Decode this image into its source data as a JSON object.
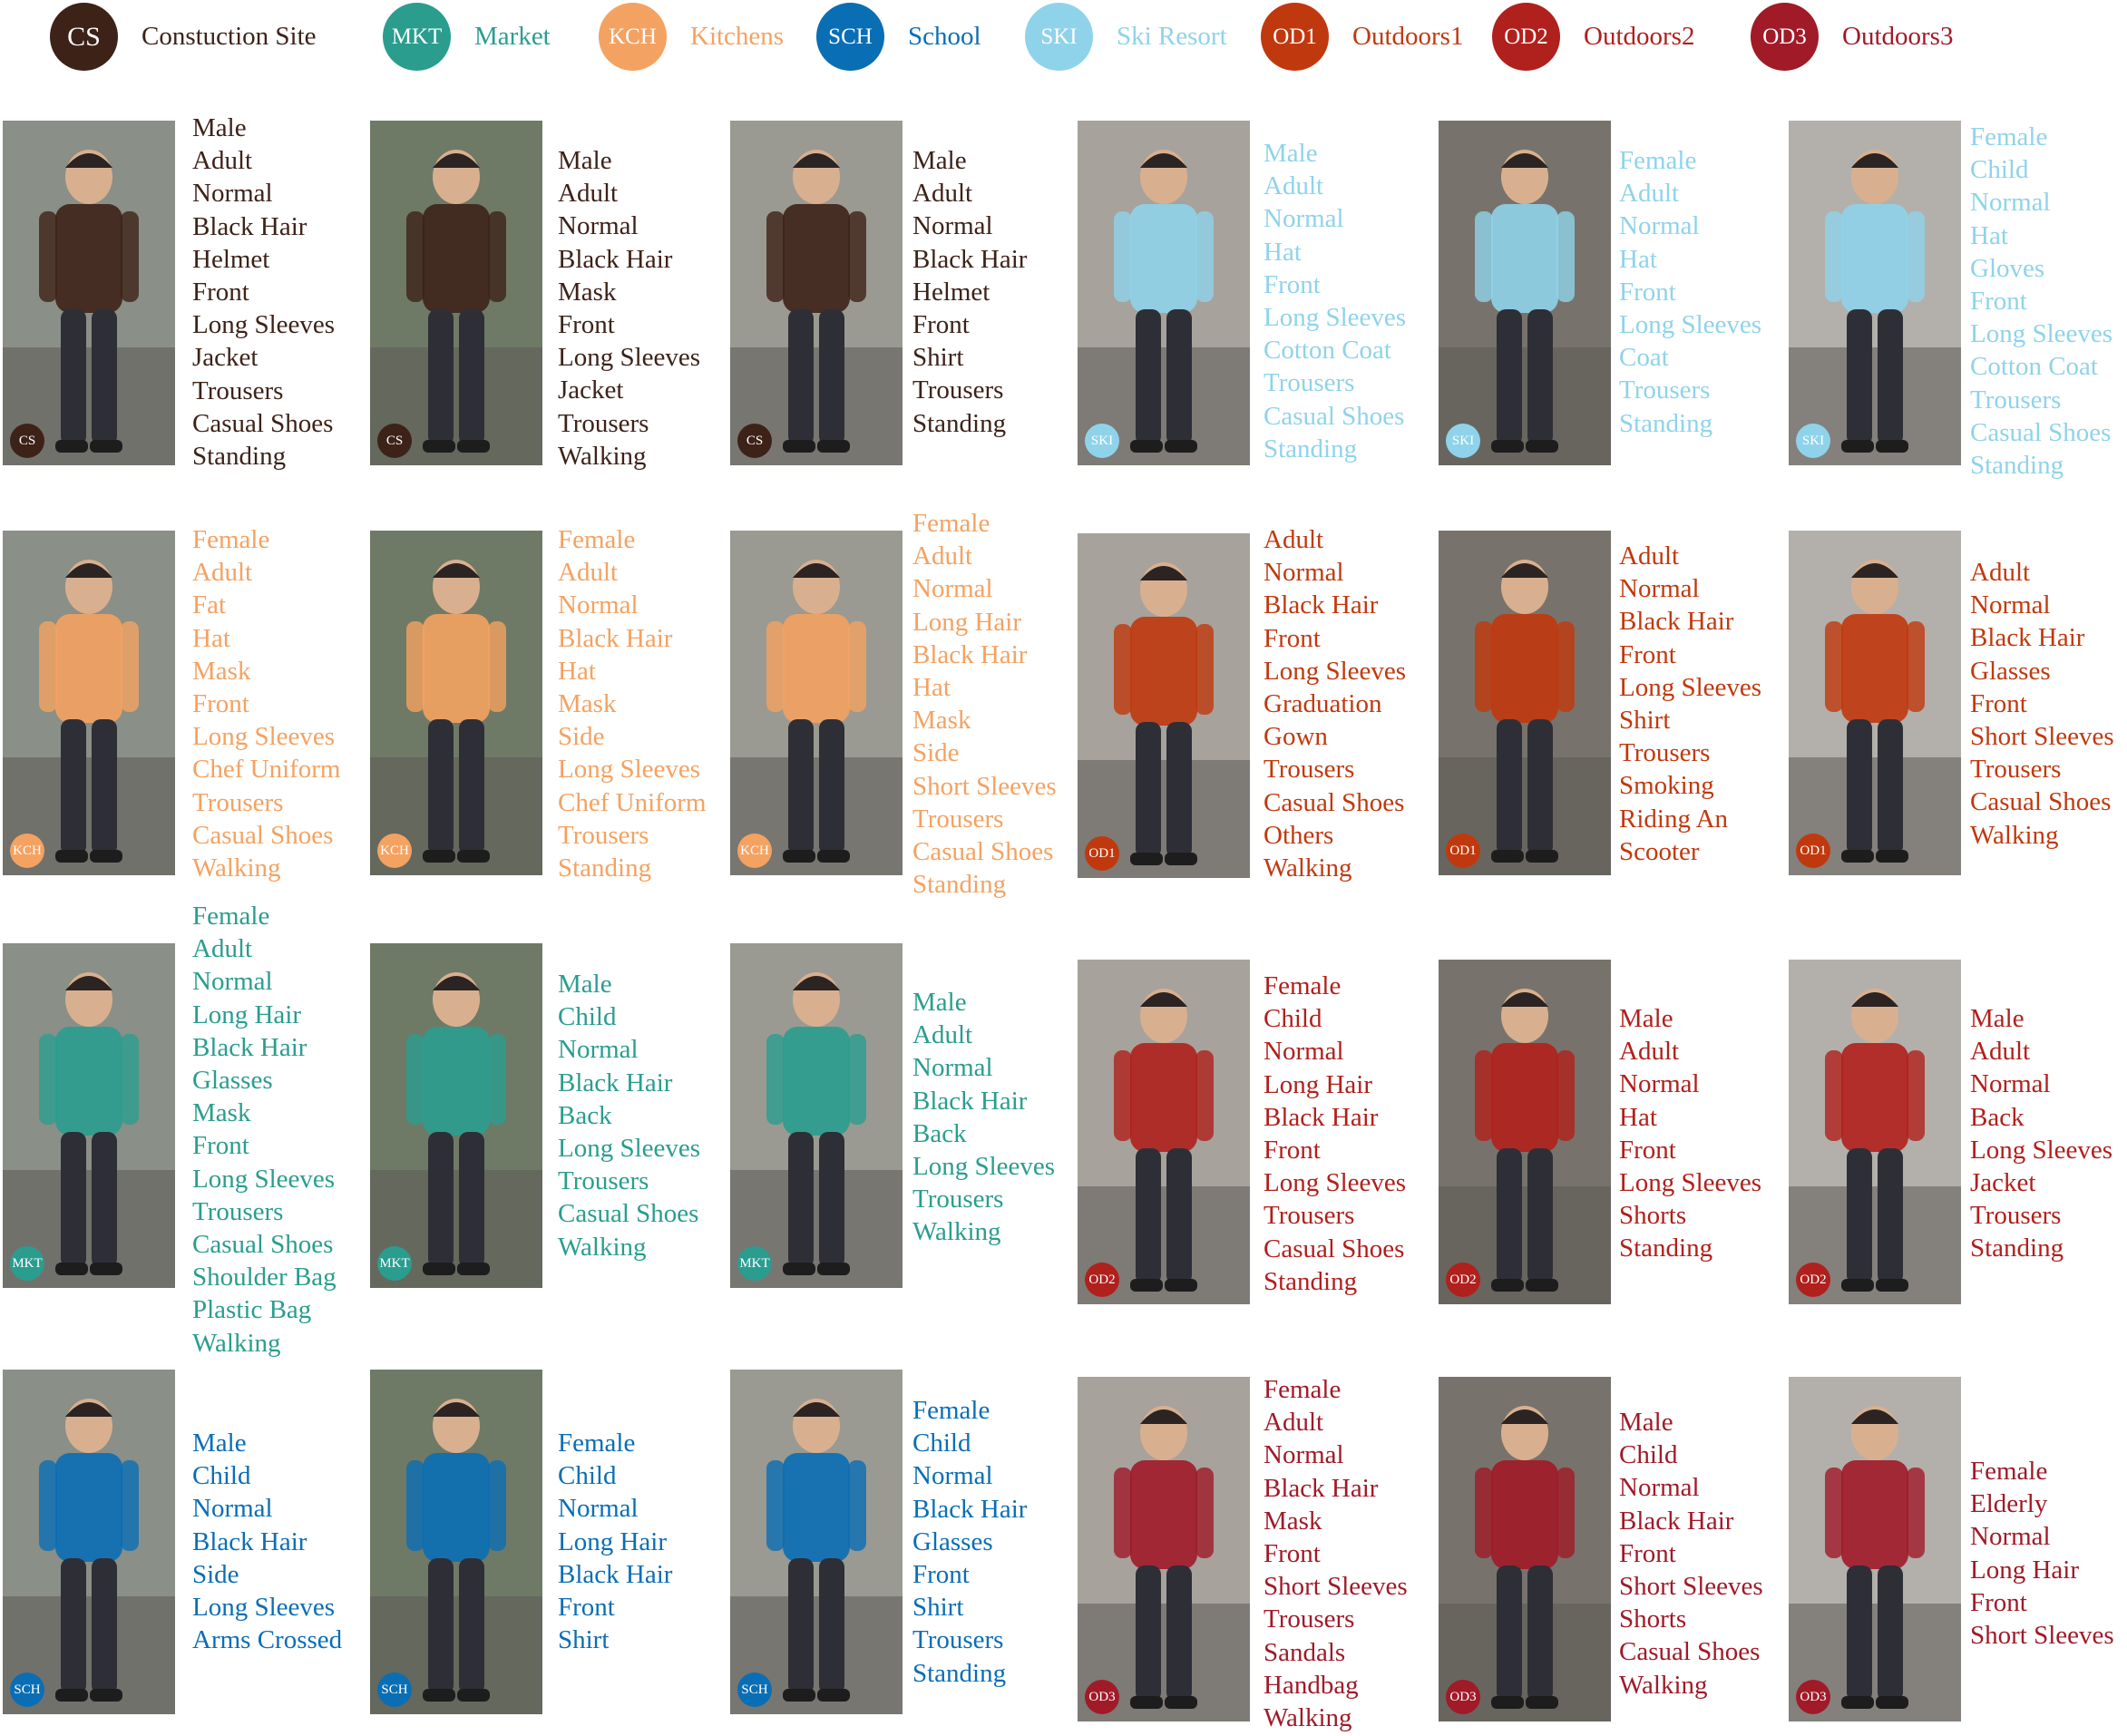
{
  "scenes": {
    "CS": {
      "code": "CS",
      "label": "Constuction Site",
      "circle": "#3d2218",
      "text": "#3d2218"
    },
    "MKT": {
      "code": "MKT",
      "label": "Market",
      "circle": "#2a9d8f",
      "text": "#2a9d8f"
    },
    "KCH": {
      "code": "KCH",
      "label": "Kitchens",
      "circle": "#f4a261",
      "text": "#f4a261"
    },
    "SCH": {
      "code": "SCH",
      "label": "School",
      "circle": "#0a6eb5",
      "text": "#0a6eb5"
    },
    "SKI": {
      "code": "SKI",
      "label": "Ski Resort",
      "circle": "#8fd3ea",
      "text": "#8fd3ea"
    },
    "OD1": {
      "code": "OD1",
      "label": "Outdoors1",
      "circle": "#c0390e",
      "text": "#c0390e"
    },
    "OD2": {
      "code": "OD2",
      "label": "Outdoors2",
      "circle": "#b0201c",
      "text": "#b0201c"
    },
    "OD3": {
      "code": "OD3",
      "label": "Outdoors3",
      "circle": "#a01a28",
      "text": "#a01a28"
    }
  },
  "legend_order": [
    "CS",
    "MKT",
    "KCH",
    "SCH",
    "SKI",
    "OD1",
    "OD2",
    "OD3"
  ],
  "samples": [
    {
      "scene": "CS",
      "attributes": [
        "Male",
        "Adult",
        "Normal",
        "Black Hair",
        "Helmet",
        "Front",
        "Long Sleeves",
        "Jacket",
        "Trousers",
        "Casual Shoes",
        "Standing"
      ]
    },
    {
      "scene": "CS",
      "attributes": [
        "Male",
        "Adult",
        "Normal",
        "Black Hair",
        "Mask",
        "Front",
        "Long Sleeves",
        "Jacket",
        "Trousers",
        "Walking"
      ]
    },
    {
      "scene": "CS",
      "attributes": [
        "Male",
        "Adult",
        "Normal",
        "Black Hair",
        "Helmet",
        "Front",
        "Shirt",
        "Trousers",
        "Standing"
      ]
    },
    {
      "scene": "SKI",
      "attributes": [
        "Male",
        "Adult",
        "Normal",
        "Hat",
        "Front",
        "Long Sleeves",
        "Cotton  Coat",
        "Trousers",
        "Casual Shoes",
        "Standing"
      ]
    },
    {
      "scene": "SKI",
      "attributes": [
        "Female",
        "Adult",
        "Normal",
        "Hat",
        "Front",
        "Long Sleeves",
        "Coat",
        "Trousers",
        "Standing"
      ]
    },
    {
      "scene": "SKI",
      "attributes": [
        "Female",
        "Child",
        "Normal",
        "Hat",
        "Gloves",
        "Front",
        "Long Sleeves",
        "Cotton Coat",
        "Trousers",
        "Casual Shoes",
        "Standing"
      ]
    },
    {
      "scene": "KCH",
      "attributes": [
        "Female",
        "Adult",
        "Fat",
        "Hat",
        "Mask",
        "Front",
        "Long Sleeves",
        "Chef Uniform",
        "Trousers",
        "Casual Shoes",
        "Walking"
      ]
    },
    {
      "scene": "KCH",
      "attributes": [
        "Female",
        "Adult",
        "Normal",
        "Black Hair",
        "Hat",
        "Mask",
        "Side",
        "Long Sleeves",
        "Chef Uniform",
        "Trousers",
        "Standing"
      ]
    },
    {
      "scene": "KCH",
      "attributes": [
        "Female",
        "Adult",
        "Normal",
        "Long Hair",
        "Black Hair",
        "Hat",
        "Mask",
        "Side",
        "Short Sleeves",
        "Trousers",
        "Casual Shoes",
        "Standing"
      ]
    },
    {
      "scene": "OD1",
      "attributes": [
        "Adult",
        "Normal",
        "Black Hair",
        "Front",
        "Long Sleeves",
        "Graduation",
        "Gown",
        "Trousers",
        "Casual Shoes",
        "Others",
        "Walking"
      ]
    },
    {
      "scene": "OD1",
      "attributes": [
        "Adult",
        "Normal",
        "Black Hair",
        "Front",
        "Long Sleeves",
        "Shirt",
        "Trousers",
        "Smoking",
        "Riding An",
        "Scooter"
      ]
    },
    {
      "scene": "OD1",
      "attributes": [
        "Adult",
        "Normal",
        "Black Hair",
        "Glasses",
        "Front",
        "Short Sleeves",
        "Trousers",
        "Casual Shoes",
        "Walking"
      ]
    },
    {
      "scene": "MKT",
      "attributes": [
        "Female",
        "Adult",
        "Normal",
        "Long Hair",
        "Black Hair",
        "Glasses",
        "Mask",
        "Front",
        "Long Sleeves",
        "Trousers",
        "Casual Shoes",
        "Shoulder Bag",
        "Plastic Bag",
        "Walking"
      ]
    },
    {
      "scene": "MKT",
      "attributes": [
        "Male",
        "Child",
        "Normal",
        "Black Hair",
        "Back",
        "Long Sleeves",
        "Trousers",
        "Casual Shoes",
        "Walking"
      ]
    },
    {
      "scene": "MKT",
      "attributes": [
        "Male",
        "Adult",
        "Normal",
        "Black Hair",
        "Back",
        "Long Sleeves",
        "Trousers",
        "Walking"
      ]
    },
    {
      "scene": "OD2",
      "attributes": [
        "Female",
        "Child",
        "Normal",
        "Long Hair",
        "Black Hair",
        "Front",
        "Long Sleeves",
        "Trousers",
        "Casual Shoes",
        "Standing"
      ]
    },
    {
      "scene": "OD2",
      "attributes": [
        "Male",
        "Adult",
        "Normal",
        "Hat",
        "Front",
        "Long Sleeves",
        "Shorts",
        "Standing"
      ]
    },
    {
      "scene": "OD2",
      "attributes": [
        "Male",
        "Adult",
        "Normal",
        "Back",
        "Long Sleeves",
        "Jacket",
        "Trousers",
        "Standing"
      ]
    },
    {
      "scene": "SCH",
      "attributes": [
        "Male",
        "Child",
        "Normal",
        "Black Hair",
        "Side",
        "Long Sleeves",
        "Arms Crossed"
      ]
    },
    {
      "scene": "SCH",
      "attributes": [
        "Female",
        "Child",
        "Normal",
        "Long Hair",
        "Black Hair",
        "Front",
        "Shirt"
      ]
    },
    {
      "scene": "SCH",
      "attributes": [
        "Female",
        "Child",
        "Normal",
        "Black Hair",
        "Glasses",
        "Front",
        "Shirt",
        "Trousers",
        "Standing"
      ]
    },
    {
      "scene": "OD3",
      "attributes": [
        "Female",
        "Adult",
        "Normal",
        "Black Hair",
        "Mask",
        "Front",
        "Short Sleeves",
        "Trousers",
        "Sandals",
        "Handbag",
        "Walking"
      ]
    },
    {
      "scene": "OD3",
      "attributes": [
        "Male",
        "Child",
        "Normal",
        "Black Hair",
        "Front",
        "Short Sleeves",
        "Shorts",
        "Casual Shoes",
        "Walking"
      ]
    },
    {
      "scene": "OD3",
      "attributes": [
        "Female",
        "Elderly",
        "Normal",
        "Long Hair",
        "Front",
        "Short Sleeves"
      ]
    }
  ]
}
